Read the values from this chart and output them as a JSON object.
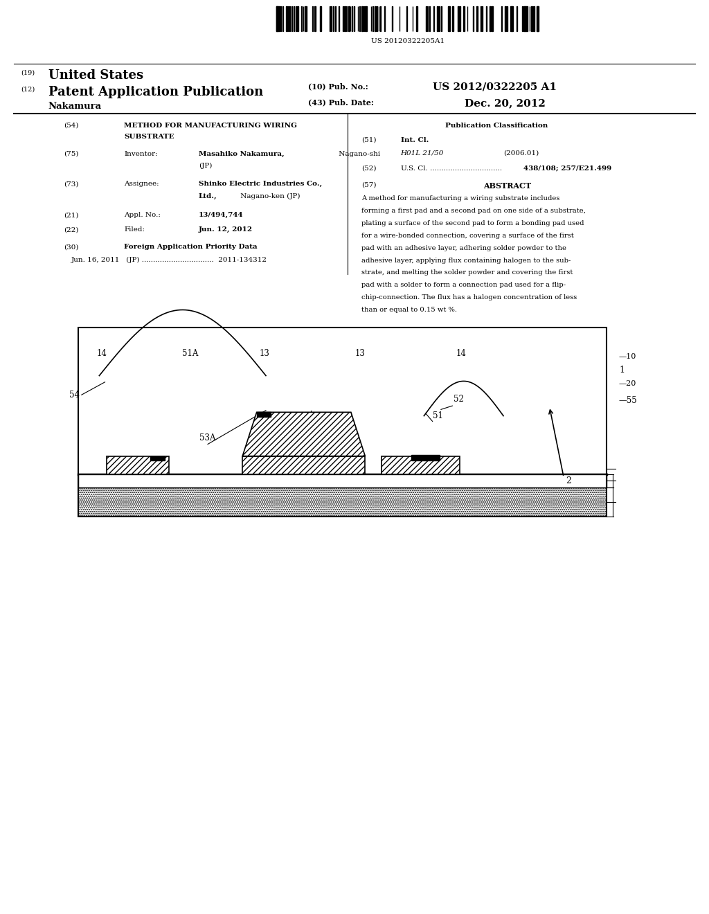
{
  "bg_color": "#ffffff",
  "pub_number": "US 20120322205A1",
  "abstract_lines": [
    "A method for manufacturing a wiring substrate includes",
    "forming a first pad and a second pad on one side of a substrate,",
    "plating a surface of the second pad to form a bonding pad used",
    "for a wire-bonded connection, covering a surface of the first",
    "pad with an adhesive layer, adhering solder powder to the",
    "adhesive layer, applying flux containing halogen to the sub-",
    "strate, and melting the solder powder and covering the first",
    "pad with a solder to form a connection pad used for a flip-",
    "chip-connection. The flux has a halogen concentration of less",
    "than or equal to 0.15 wt %."
  ]
}
